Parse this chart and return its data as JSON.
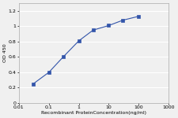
{
  "x_values": [
    0.03,
    0.1,
    0.3,
    1,
    3,
    10,
    30,
    100
  ],
  "y_values": [
    0.25,
    0.4,
    0.6,
    0.81,
    0.95,
    1.01,
    1.08,
    1.13
  ],
  "xlim": [
    0.01,
    1000
  ],
  "ylim": [
    0,
    1.3
  ],
  "yticks": [
    0,
    0.2,
    0.4,
    0.6,
    0.8,
    1.0,
    1.2
  ],
  "xticks": [
    0.01,
    0.1,
    1,
    10,
    100,
    1000
  ],
  "xtick_labels": [
    "0.01",
    "0.1",
    "1",
    "10",
    "100",
    "1000"
  ],
  "xlabel": "Recombinant ProteinConcentration(ng/ml)",
  "ylabel": "OD 450",
  "line_color": "#3355aa",
  "marker": "s",
  "marker_size": 2.5,
  "line_width": 0.8,
  "background_color": "#f0f0f0",
  "plot_bg_color": "#f0f0f0",
  "grid_color": "#ffffff",
  "title": ""
}
